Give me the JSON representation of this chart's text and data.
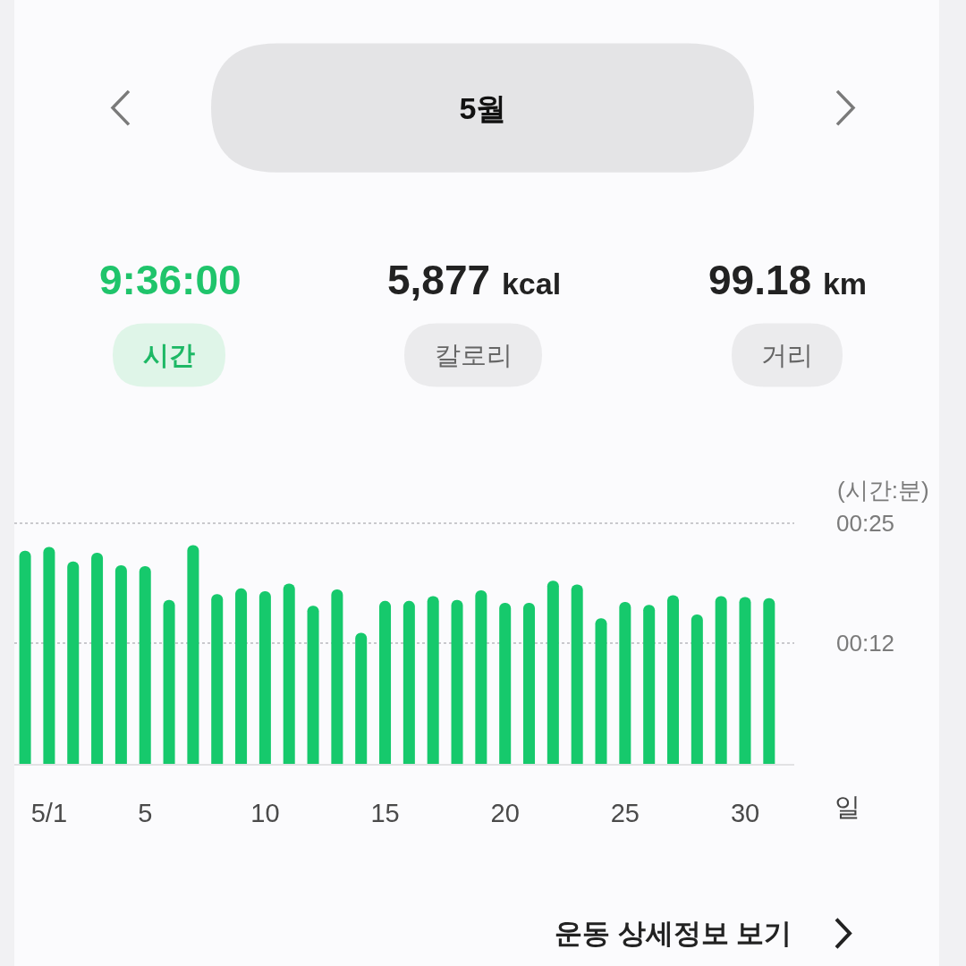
{
  "chart_data": {
    "type": "bar",
    "title": "5월",
    "xlabel": "일",
    "ylabel": "(시간:분)",
    "categories": [
      null,
      "5/1",
      null,
      null,
      null,
      "5",
      null,
      null,
      null,
      null,
      "10",
      null,
      null,
      null,
      null,
      "15",
      null,
      null,
      null,
      null,
      "20",
      null,
      null,
      null,
      null,
      "25",
      null,
      null,
      null,
      null,
      "30",
      null
    ],
    "values": [
      22.1,
      22.5,
      21.0,
      21.9,
      20.6,
      20.5,
      17.0,
      22.7,
      17.6,
      18.2,
      17.9,
      18.7,
      16.4,
      18.1,
      13.6,
      16.9,
      16.9,
      17.4,
      17.0,
      18.0,
      16.7,
      16.7,
      19.0,
      18.6,
      15.1,
      16.8,
      16.5,
      17.5,
      15.5,
      17.4,
      17.3,
      17.2
    ],
    "color": "#16c96c",
    "ylim": [
      0,
      25
    ],
    "yticks": [
      {
        "value": 25,
        "label": "00:25"
      },
      {
        "value": 12.5,
        "label": "00:12"
      }
    ],
    "grid": "y",
    "annotations": [
      "9:36:00",
      "5,877 kcal",
      "99.18 km",
      "시간",
      "칼로리",
      "거리",
      "운동 상세정보 보기"
    ]
  }
}
